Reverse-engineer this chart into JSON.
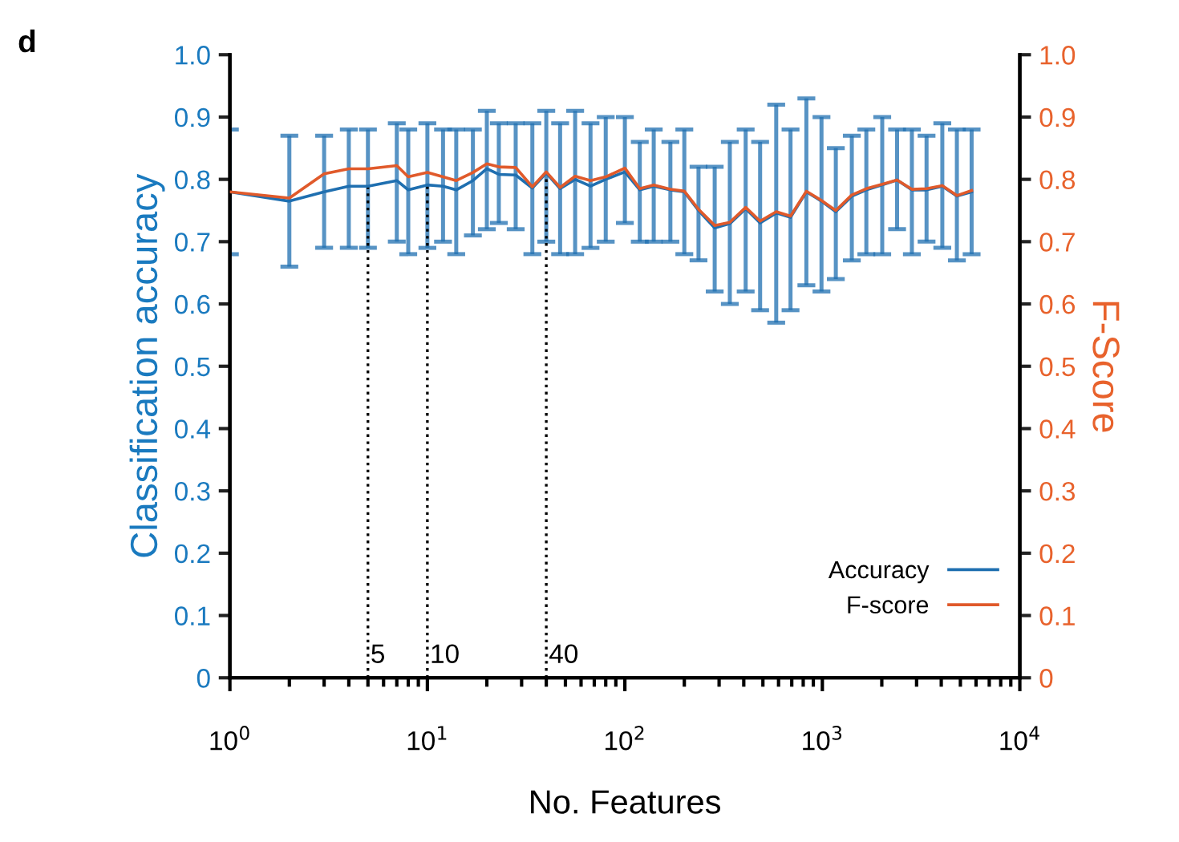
{
  "chart_data": {
    "type": "line",
    "title": "d",
    "xlabel": "No. Features",
    "ylabel": "Classification accuracy",
    "y2label": "F-Score",
    "log": "x",
    "xlim": [
      1,
      10000
    ],
    "xticks": [
      {
        "value": 1,
        "label": "10$^{0}$"
      },
      {
        "value": 10,
        "label": "10$^{1}$"
      },
      {
        "value": 100,
        "label": "10$^{2}$"
      },
      {
        "value": 1000,
        "label": "10$^{3}$"
      },
      {
        "value": 10000,
        "label": "10$^{4}$"
      }
    ],
    "ylim": [
      0,
      1
    ],
    "yticks": [
      0,
      0.1,
      0.2,
      0.3,
      0.4,
      0.5,
      0.6,
      0.7,
      0.8,
      0.9,
      {
        "value": 1,
        "label": "1.0"
      }
    ],
    "y2lim": [
      0,
      1
    ],
    "y2ticks": [
      0,
      0.1,
      0.2,
      0.3,
      0.4,
      0.5,
      0.6,
      0.7,
      0.8,
      0.9,
      {
        "value": 1,
        "label": "1.0"
      }
    ],
    "x": [
      1,
      2,
      3,
      4,
      5,
      7,
      8,
      10,
      12,
      14,
      17,
      20,
      23,
      28,
      34,
      40,
      47,
      56,
      67,
      80,
      100,
      119,
      140,
      170,
      200,
      236,
      285,
      340,
      409,
      484,
      584,
      690,
      830,
      990,
      1170,
      1410,
      1670,
      2010,
      2390,
      2840,
      3370,
      4050,
      4800,
      5700
    ],
    "series": [
      {
        "name": "Accuracy",
        "color": "#1f6fb0",
        "values": [
          0.78,
          0.765,
          0.78,
          0.789,
          0.789,
          0.798,
          0.783,
          0.791,
          0.789,
          0.783,
          0.798,
          0.817,
          0.808,
          0.807,
          0.786,
          0.81,
          0.785,
          0.8,
          0.789,
          0.8,
          0.812,
          0.783,
          0.789,
          0.783,
          0.78,
          0.75,
          0.722,
          0.729,
          0.753,
          0.73,
          0.746,
          0.739,
          0.78,
          0.765,
          0.748,
          0.773,
          0.783,
          0.791,
          0.799,
          0.783,
          0.783,
          0.789,
          0.773,
          0.78
        ],
        "errors": [
          [
            0.68,
            0.88
          ],
          [
            0.66,
            0.87
          ],
          [
            0.69,
            0.87
          ],
          [
            0.69,
            0.88
          ],
          [
            0.69,
            0.88
          ],
          [
            0.7,
            0.89
          ],
          [
            0.68,
            0.88
          ],
          [
            0.69,
            0.89
          ],
          [
            0.7,
            0.88
          ],
          [
            0.68,
            0.88
          ],
          [
            0.71,
            0.88
          ],
          [
            0.72,
            0.91
          ],
          [
            0.73,
            0.89
          ],
          [
            0.72,
            0.89
          ],
          [
            0.68,
            0.89
          ],
          [
            0.7,
            0.91
          ],
          [
            0.68,
            0.89
          ],
          [
            0.68,
            0.91
          ],
          [
            0.69,
            0.89
          ],
          [
            0.7,
            0.9
          ],
          [
            0.73,
            0.9
          ],
          [
            0.7,
            0.86
          ],
          [
            0.7,
            0.88
          ],
          [
            0.7,
            0.86
          ],
          [
            0.68,
            0.88
          ],
          [
            0.67,
            0.82
          ],
          [
            0.62,
            0.82
          ],
          [
            0.6,
            0.86
          ],
          [
            0.62,
            0.88
          ],
          [
            0.59,
            0.86
          ],
          [
            0.57,
            0.92
          ],
          [
            0.59,
            0.88
          ],
          [
            0.63,
            0.93
          ],
          [
            0.62,
            0.9
          ],
          [
            0.64,
            0.85
          ],
          [
            0.67,
            0.87
          ],
          [
            0.68,
            0.88
          ],
          [
            0.68,
            0.9
          ],
          [
            0.72,
            0.88
          ],
          [
            0.68,
            0.88
          ],
          [
            0.7,
            0.87
          ],
          [
            0.69,
            0.89
          ],
          [
            0.67,
            0.88
          ],
          [
            0.68,
            0.88
          ]
        ]
      },
      {
        "name": "F-score",
        "color": "#e05a2b",
        "axis": "y2",
        "values": [
          0.78,
          0.77,
          0.809,
          0.817,
          0.817,
          0.822,
          0.804,
          0.811,
          0.804,
          0.798,
          0.811,
          0.825,
          0.82,
          0.819,
          0.788,
          0.812,
          0.787,
          0.805,
          0.798,
          0.804,
          0.818,
          0.785,
          0.791,
          0.784,
          0.781,
          0.752,
          0.726,
          0.731,
          0.755,
          0.733,
          0.748,
          0.741,
          0.781,
          0.766,
          0.75,
          0.775,
          0.785,
          0.792,
          0.799,
          0.784,
          0.785,
          0.79,
          0.774,
          0.782
        ]
      }
    ],
    "ref_lines": [
      {
        "axis": "x",
        "value": 5,
        "label": "5",
        "line_style": "dotted"
      },
      {
        "axis": "x",
        "value": 10,
        "label": "10",
        "line_style": "dotted"
      },
      {
        "axis": "x",
        "value": 40,
        "label": "40",
        "line_style": "dotted"
      }
    ],
    "legend": "bottom right",
    "grid": false,
    "marker": "none",
    "line_style": "solid"
  }
}
